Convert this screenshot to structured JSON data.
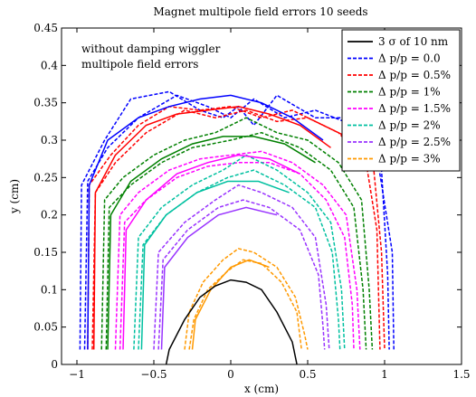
{
  "chart_data": {
    "type": "line",
    "title": "Magnet multipole field errors 10 seeds",
    "xlabel": "x (cm)",
    "ylabel": "y (cm)",
    "xlim": [
      -1.1,
      1.5
    ],
    "ylim": [
      0,
      0.45
    ],
    "xticks": [
      -1,
      -0.5,
      0,
      0.5,
      1,
      1.5
    ],
    "yticks": [
      0,
      0.05,
      0.1,
      0.15,
      0.2,
      0.25,
      0.3,
      0.35,
      0.4,
      0.45
    ],
    "xtick_labels": [
      "−1",
      "−0.5",
      "0",
      "0.5",
      "1",
      "1.5"
    ],
    "ytick_labels": [
      "0",
      "0.05",
      "0.1",
      "0.15",
      "0.2",
      "0.25",
      "0.3",
      "0.35",
      "0.4",
      "0.45"
    ],
    "grid": false,
    "legend_position": "top-right",
    "annotation_lines": [
      "without damping wiggler",
      "multipole field errors"
    ],
    "series": [
      {
        "name": "3 σ of 10 nm",
        "color": "#000000",
        "dashed": false,
        "curves": [
          [
            [
              -0.42,
              0
            ],
            [
              -0.4,
              0.02
            ],
            [
              -0.3,
              0.06
            ],
            [
              -0.2,
              0.09
            ],
            [
              -0.1,
              0.105
            ],
            [
              0,
              0.113
            ],
            [
              0.1,
              0.11
            ],
            [
              0.2,
              0.1
            ],
            [
              0.3,
              0.07
            ],
            [
              0.4,
              0.03
            ],
            [
              0.43,
              0
            ]
          ]
        ]
      },
      {
        "name": "Δ p/p = 0.0",
        "color": "#0000ff",
        "dashed": true,
        "curves": [
          [
            [
              -0.98,
              0.02
            ],
            [
              -0.97,
              0.24
            ],
            [
              -0.82,
              0.3
            ],
            [
              -0.65,
              0.355
            ],
            [
              -0.4,
              0.365
            ],
            [
              -0.2,
              0.34
            ],
            [
              -0.05,
              0.33
            ],
            [
              0.05,
              0.345
            ],
            [
              0.15,
              0.32
            ],
            [
              0.3,
              0.36
            ],
            [
              0.55,
              0.33
            ],
            [
              0.75,
              0.33
            ],
            [
              0.95,
              0.28
            ],
            [
              1.05,
              0.15
            ],
            [
              1.06,
              0.02
            ]
          ],
          [
            [
              -0.95,
              0.02
            ],
            [
              -0.93,
              0.245
            ],
            [
              -0.8,
              0.29
            ],
            [
              -0.6,
              0.33
            ],
            [
              -0.35,
              0.36
            ],
            [
              -0.15,
              0.345
            ],
            [
              0,
              0.33
            ],
            [
              0.15,
              0.355
            ],
            [
              0.35,
              0.33
            ],
            [
              0.55,
              0.34
            ],
            [
              0.8,
              0.32
            ],
            [
              0.98,
              0.26
            ],
            [
              1.02,
              0.12
            ],
            [
              1.03,
              0.02
            ]
          ]
        ]
      },
      {
        "name": "Δ p/p = 0.5%",
        "color": "#ff0000",
        "dashed": true,
        "curves": [
          [
            [
              -0.93,
              0.02
            ],
            [
              -0.92,
              0.24
            ],
            [
              -0.78,
              0.28
            ],
            [
              -0.6,
              0.32
            ],
            [
              -0.4,
              0.345
            ],
            [
              -0.2,
              0.34
            ],
            [
              0,
              0.345
            ],
            [
              0.2,
              0.33
            ],
            [
              0.4,
              0.34
            ],
            [
              0.6,
              0.32
            ],
            [
              0.8,
              0.3
            ],
            [
              0.93,
              0.26
            ],
            [
              0.98,
              0.15
            ],
            [
              1,
              0.02
            ]
          ],
          [
            [
              -0.9,
              0.02
            ],
            [
              -0.88,
              0.23
            ],
            [
              -0.75,
              0.27
            ],
            [
              -0.55,
              0.31
            ],
            [
              -0.3,
              0.34
            ],
            [
              -0.1,
              0.33
            ],
            [
              0.1,
              0.34
            ],
            [
              0.3,
              0.325
            ],
            [
              0.5,
              0.33
            ],
            [
              0.7,
              0.31
            ],
            [
              0.88,
              0.27
            ],
            [
              0.95,
              0.18
            ],
            [
              0.97,
              0.02
            ]
          ]
        ]
      },
      {
        "name": "Δ p/p = 1%",
        "color": "#008000",
        "dashed": true,
        "curves": [
          [
            [
              -0.84,
              0.02
            ],
            [
              -0.82,
              0.22
            ],
            [
              -0.7,
              0.25
            ],
            [
              -0.5,
              0.28
            ],
            [
              -0.3,
              0.3
            ],
            [
              -0.1,
              0.31
            ],
            [
              0.1,
              0.33
            ],
            [
              0.3,
              0.31
            ],
            [
              0.5,
              0.3
            ],
            [
              0.7,
              0.27
            ],
            [
              0.85,
              0.22
            ],
            [
              0.9,
              0.1
            ],
            [
              0.92,
              0.02
            ]
          ],
          [
            [
              -0.81,
              0.02
            ],
            [
              -0.79,
              0.21
            ],
            [
              -0.65,
              0.24
            ],
            [
              -0.45,
              0.27
            ],
            [
              -0.25,
              0.29
            ],
            [
              0,
              0.3
            ],
            [
              0.2,
              0.31
            ],
            [
              0.45,
              0.29
            ],
            [
              0.65,
              0.26
            ],
            [
              0.8,
              0.21
            ],
            [
              0.86,
              0.1
            ],
            [
              0.88,
              0.02
            ]
          ]
        ]
      },
      {
        "name": "Δ p/p = 1.5%",
        "color": "#ff00ff",
        "dashed": true,
        "curves": [
          [
            [
              -0.75,
              0.02
            ],
            [
              -0.72,
              0.2
            ],
            [
              -0.6,
              0.23
            ],
            [
              -0.4,
              0.26
            ],
            [
              -0.2,
              0.275
            ],
            [
              0,
              0.28
            ],
            [
              0.2,
              0.285
            ],
            [
              0.4,
              0.27
            ],
            [
              0.6,
              0.24
            ],
            [
              0.75,
              0.2
            ],
            [
              0.82,
              0.1
            ],
            [
              0.84,
              0.02
            ]
          ],
          [
            [
              -0.72,
              0.02
            ],
            [
              -0.69,
              0.19
            ],
            [
              -0.55,
              0.22
            ],
            [
              -0.35,
              0.25
            ],
            [
              -0.15,
              0.265
            ],
            [
              0.05,
              0.27
            ],
            [
              0.25,
              0.27
            ],
            [
              0.45,
              0.255
            ],
            [
              0.62,
              0.22
            ],
            [
              0.74,
              0.17
            ],
            [
              0.79,
              0.08
            ],
            [
              0.8,
              0.02
            ]
          ]
        ]
      },
      {
        "name": "Δ p/p = 2%",
        "color": "#00c0a0",
        "dashed": true,
        "curves": [
          [
            [
              -0.63,
              0.02
            ],
            [
              -0.6,
              0.17
            ],
            [
              -0.45,
              0.21
            ],
            [
              -0.25,
              0.24
            ],
            [
              -0.05,
              0.26
            ],
            [
              0.1,
              0.28
            ],
            [
              0.3,
              0.26
            ],
            [
              0.5,
              0.23
            ],
            [
              0.65,
              0.19
            ],
            [
              0.72,
              0.1
            ],
            [
              0.74,
              0.02
            ]
          ],
          [
            [
              -0.6,
              0.02
            ],
            [
              -0.57,
              0.16
            ],
            [
              -0.42,
              0.2
            ],
            [
              -0.22,
              0.23
            ],
            [
              -0.02,
              0.25
            ],
            [
              0.15,
              0.26
            ],
            [
              0.35,
              0.24
            ],
            [
              0.55,
              0.21
            ],
            [
              0.66,
              0.15
            ],
            [
              0.7,
              0.06
            ],
            [
              0.71,
              0.02
            ]
          ]
        ]
      },
      {
        "name": "Δ p/p = 2.5%",
        "color": "#9933ff",
        "dashed": true,
        "curves": [
          [
            [
              -0.5,
              0.02
            ],
            [
              -0.47,
              0.15
            ],
            [
              -0.3,
              0.19
            ],
            [
              -0.1,
              0.22
            ],
            [
              0.05,
              0.24
            ],
            [
              0.2,
              0.23
            ],
            [
              0.4,
              0.21
            ],
            [
              0.55,
              0.17
            ],
            [
              0.62,
              0.08
            ],
            [
              0.64,
              0.02
            ]
          ],
          [
            [
              -0.47,
              0.02
            ],
            [
              -0.44,
              0.14
            ],
            [
              -0.28,
              0.18
            ],
            [
              -0.08,
              0.21
            ],
            [
              0.08,
              0.22
            ],
            [
              0.25,
              0.21
            ],
            [
              0.45,
              0.18
            ],
            [
              0.57,
              0.12
            ],
            [
              0.6,
              0.05
            ],
            [
              0.61,
              0.02
            ]
          ]
        ]
      },
      {
        "name": "Δ p/p = 3%",
        "color": "#ff9900",
        "dashed": true,
        "curves": [
          [
            [
              -0.3,
              0.02
            ],
            [
              -0.27,
              0.07
            ],
            [
              -0.18,
              0.11
            ],
            [
              -0.05,
              0.14
            ],
            [
              0.05,
              0.155
            ],
            [
              0.15,
              0.15
            ],
            [
              0.3,
              0.13
            ],
            [
              0.42,
              0.09
            ],
            [
              0.48,
              0.04
            ],
            [
              0.5,
              0.02
            ]
          ],
          [
            [
              -0.27,
              0.02
            ],
            [
              -0.24,
              0.06
            ],
            [
              -0.15,
              0.1
            ],
            [
              -0.02,
              0.125
            ],
            [
              0.08,
              0.14
            ],
            [
              0.2,
              0.135
            ],
            [
              0.33,
              0.11
            ],
            [
              0.43,
              0.07
            ],
            [
              0.46,
              0.02
            ]
          ]
        ]
      }
    ],
    "solid_boundaries": [
      {
        "color": "#0000ff",
        "points": [
          [
            -0.93,
            0.02
          ],
          [
            -0.92,
            0.24
          ],
          [
            -0.8,
            0.3
          ],
          [
            -0.6,
            0.33
          ],
          [
            -0.4,
            0.345
          ],
          [
            -0.2,
            0.355
          ],
          [
            0,
            0.36
          ],
          [
            0.2,
            0.35
          ],
          [
            0.4,
            0.33
          ],
          [
            0.6,
            0.3
          ]
        ]
      },
      {
        "color": "#ff0000",
        "points": [
          [
            -0.89,
            0.02
          ],
          [
            -0.88,
            0.23
          ],
          [
            -0.75,
            0.28
          ],
          [
            -0.55,
            0.32
          ],
          [
            -0.35,
            0.335
          ],
          [
            -0.15,
            0.34
          ],
          [
            0.05,
            0.345
          ],
          [
            0.25,
            0.335
          ],
          [
            0.45,
            0.32
          ],
          [
            0.65,
            0.29
          ]
        ]
      },
      {
        "color": "#008000",
        "points": [
          [
            -0.8,
            0.02
          ],
          [
            -0.78,
            0.2
          ],
          [
            -0.65,
            0.245
          ],
          [
            -0.45,
            0.275
          ],
          [
            -0.25,
            0.295
          ],
          [
            -0.05,
            0.305
          ],
          [
            0.15,
            0.305
          ],
          [
            0.35,
            0.295
          ],
          [
            0.55,
            0.27
          ]
        ]
      },
      {
        "color": "#ff00ff",
        "points": [
          [
            -0.7,
            0.02
          ],
          [
            -0.68,
            0.18
          ],
          [
            -0.55,
            0.22
          ],
          [
            -0.35,
            0.255
          ],
          [
            -0.15,
            0.27
          ],
          [
            0.05,
            0.28
          ],
          [
            0.25,
            0.275
          ],
          [
            0.45,
            0.255
          ]
        ]
      },
      {
        "color": "#00c0a0",
        "points": [
          [
            -0.58,
            0.02
          ],
          [
            -0.56,
            0.16
          ],
          [
            -0.42,
            0.2
          ],
          [
            -0.22,
            0.23
          ],
          [
            -0.02,
            0.245
          ],
          [
            0.18,
            0.245
          ],
          [
            0.38,
            0.23
          ]
        ]
      },
      {
        "color": "#9933ff",
        "points": [
          [
            -0.45,
            0.02
          ],
          [
            -0.43,
            0.13
          ],
          [
            -0.28,
            0.17
          ],
          [
            -0.08,
            0.2
          ],
          [
            0.1,
            0.21
          ],
          [
            0.3,
            0.2
          ]
        ]
      },
      {
        "color": "#ff9900",
        "points": [
          [
            -0.25,
            0.02
          ],
          [
            -0.23,
            0.06
          ],
          [
            -0.13,
            0.1
          ],
          [
            0,
            0.13
          ],
          [
            0.12,
            0.14
          ],
          [
            0.25,
            0.13
          ]
        ]
      }
    ]
  }
}
